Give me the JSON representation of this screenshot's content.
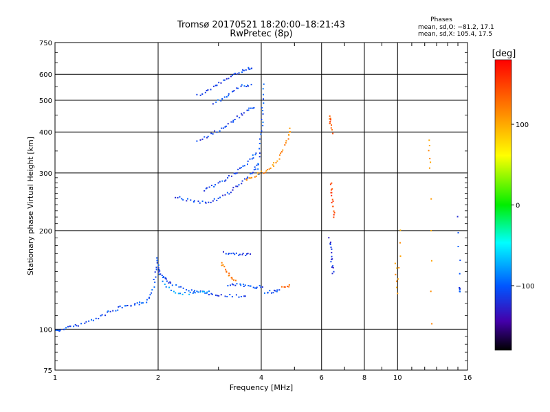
{
  "chart_data": {
    "type": "scatter",
    "title": "Tromsø 20170521 18:20:00–18:21:43",
    "subtitle": "RwPretec (8p)",
    "xlabel": "Frequency [MHz]",
    "ylabel": "Stationary phase Virtual Height [km]",
    "xscale": "log",
    "yscale": "log",
    "xlim": [
      1,
      16
    ],
    "ylim": [
      75,
      750
    ],
    "x_ticks": [
      1,
      2,
      4,
      6,
      8,
      10,
      16
    ],
    "x_tick_labels": [
      "1",
      "2",
      "4",
      "6",
      "8",
      "10",
      "16"
    ],
    "y_ticks": [
      75,
      100,
      200,
      300,
      400,
      500,
      600,
      750
    ],
    "y_tick_labels": [
      "75",
      "100",
      "200",
      "300",
      "400",
      "500",
      "600",
      "750"
    ],
    "grid": true,
    "phases": {
      "title": "Phases",
      "line_o": "mean, sd,O: −81.2, 17.1",
      "line_x": "mean, sd,X: 105.4, 17.5"
    },
    "colorbar": {
      "label": "[deg]",
      "range": [
        -180,
        180
      ],
      "ticks": [
        100,
        0,
        -100
      ],
      "tick_labels": [
        "100",
        "0",
        "−100"
      ]
    },
    "traces": [
      {
        "phase": -105,
        "points": [
          [
            1.0,
            99
          ],
          [
            1.03,
            100
          ],
          [
            1.08,
            102
          ],
          [
            1.15,
            103
          ],
          [
            1.25,
            106
          ],
          [
            1.35,
            110
          ],
          [
            1.45,
            114
          ],
          [
            1.55,
            117
          ],
          [
            1.65,
            119
          ],
          [
            1.75,
            120
          ],
          [
            1.85,
            123
          ],
          [
            1.92,
            132
          ],
          [
            1.96,
            150
          ],
          [
            1.98,
            165
          ],
          [
            2.0,
            150
          ],
          [
            2.05,
            145
          ],
          [
            2.1,
            142
          ],
          [
            2.2,
            138
          ],
          [
            2.4,
            133
          ],
          [
            2.6,
            131
          ],
          [
            2.8,
            129
          ],
          [
            3.0,
            128
          ],
          [
            3.3,
            127
          ],
          [
            3.6,
            127
          ]
        ]
      },
      {
        "phase": -80,
        "points": [
          [
            2.05,
            140
          ],
          [
            2.2,
            131
          ],
          [
            2.4,
            129
          ],
          [
            2.6,
            130
          ],
          [
            2.8,
            132
          ]
        ]
      },
      {
        "phase": -105,
        "points": [
          [
            3.2,
            137
          ],
          [
            3.4,
            137
          ],
          [
            3.6,
            136
          ],
          [
            3.8,
            135
          ],
          [
            4.0,
            136
          ]
        ]
      },
      {
        "phase": -110,
        "points": [
          [
            3.1,
            172
          ],
          [
            3.3,
            171
          ],
          [
            3.5,
            170
          ],
          [
            3.7,
            170
          ]
        ]
      },
      {
        "phase": 120,
        "points": [
          [
            3.05,
            160
          ],
          [
            3.15,
            152
          ],
          [
            3.25,
            145
          ],
          [
            3.35,
            142
          ]
        ]
      },
      {
        "phase": -105,
        "points": [
          [
            4.1,
            130
          ],
          [
            4.3,
            131
          ],
          [
            4.5,
            132
          ]
        ]
      },
      {
        "phase": 130,
        "points": [
          [
            4.6,
            135
          ],
          [
            4.8,
            136
          ]
        ]
      },
      {
        "phase": -110,
        "points": [
          [
            2.25,
            255
          ],
          [
            2.4,
            250
          ],
          [
            2.6,
            245
          ],
          [
            2.8,
            246
          ],
          [
            3.0,
            252
          ],
          [
            3.2,
            262
          ],
          [
            3.4,
            275
          ],
          [
            3.6,
            292
          ],
          [
            3.8,
            308
          ],
          [
            3.9,
            320
          ]
        ]
      },
      {
        "phase": -105,
        "points": [
          [
            2.7,
            268
          ],
          [
            2.9,
            275
          ],
          [
            3.1,
            285
          ],
          [
            3.3,
            298
          ],
          [
            3.5,
            313
          ],
          [
            3.7,
            330
          ],
          [
            3.85,
            348
          ]
        ]
      },
      {
        "phase": 115,
        "points": [
          [
            3.6,
            285
          ],
          [
            3.8,
            295
          ],
          [
            4.0,
            302
          ],
          [
            4.2,
            310
          ],
          [
            4.4,
            325
          ],
          [
            4.6,
            350
          ],
          [
            4.75,
            385
          ],
          [
            4.85,
            410
          ]
        ]
      },
      {
        "phase": -110,
        "points": [
          [
            2.6,
            380
          ],
          [
            2.8,
            392
          ],
          [
            3.0,
            408
          ],
          [
            3.2,
            425
          ],
          [
            3.4,
            445
          ],
          [
            3.6,
            465
          ],
          [
            3.8,
            480
          ]
        ]
      },
      {
        "phase": -105,
        "points": [
          [
            2.9,
            490
          ],
          [
            3.1,
            512
          ],
          [
            3.3,
            535
          ],
          [
            3.5,
            555
          ],
          [
            3.7,
            560
          ]
        ]
      },
      {
        "phase": -110,
        "points": [
          [
            2.6,
            520
          ],
          [
            2.8,
            540
          ],
          [
            3.0,
            565
          ],
          [
            3.2,
            590
          ],
          [
            3.4,
            610
          ],
          [
            3.6,
            625
          ],
          [
            3.75,
            630
          ]
        ]
      },
      {
        "phase": -100,
        "points": [
          [
            3.9,
            300
          ],
          [
            3.95,
            360
          ],
          [
            4.0,
            420
          ],
          [
            4.02,
            480
          ],
          [
            4.05,
            560
          ]
        ]
      },
      {
        "phase": 140,
        "points": [
          [
            6.3,
            450
          ],
          [
            6.35,
            430
          ],
          [
            6.4,
            400
          ]
        ]
      },
      {
        "phase": 150,
        "points": [
          [
            6.35,
            280
          ],
          [
            6.4,
            260
          ],
          [
            6.45,
            240
          ],
          [
            6.5,
            220
          ]
        ]
      },
      {
        "phase": -120,
        "points": [
          [
            6.3,
            190
          ],
          [
            6.35,
            175
          ],
          [
            6.4,
            160
          ],
          [
            6.45,
            150
          ]
        ]
      },
      {
        "phase": 110,
        "points": [
          [
            9.8,
            160
          ],
          [
            10.0,
            130
          ],
          [
            10.2,
            200
          ]
        ]
      },
      {
        "phase": 110,
        "points": [
          [
            12.3,
            380
          ],
          [
            12.4,
            310
          ],
          [
            12.5,
            105
          ]
        ]
      },
      {
        "phase": -110,
        "points": [
          [
            15.0,
            220
          ],
          [
            15.1,
            135
          ],
          [
            15.2,
            130
          ]
        ]
      }
    ]
  }
}
